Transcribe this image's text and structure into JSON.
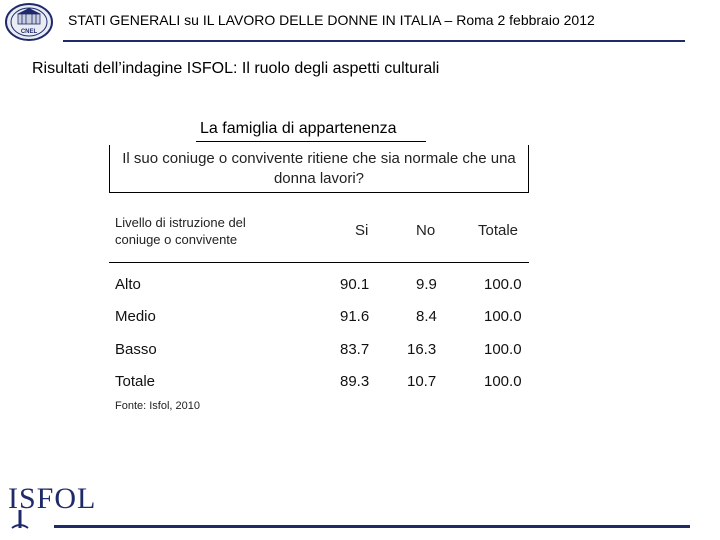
{
  "header": {
    "title": "STATI GENERALI su IL LAVORO DELLE DONNE IN ITALIA – Roma 2 febbraio 2012",
    "logo_label": "CNEL"
  },
  "subtitle": "Risultati dell’indagine ISFOL: Il ruolo degli aspetti culturali",
  "section_title": "La famiglia di appartenenza",
  "table": {
    "question": "Il suo coniuge o convivente ritiene che sia normale che una donna lavori?",
    "row_header": "Livello di istruzione del coniuge o convivente",
    "columns": [
      "Si",
      "No",
      "Totale"
    ],
    "rows": [
      {
        "label": "Alto",
        "si": "90.1",
        "no": "9.9",
        "totale": "100.0"
      },
      {
        "label": "Medio",
        "si": "91.6",
        "no": "8.4",
        "totale": "100.0"
      },
      {
        "label": "Basso",
        "si": "83.7",
        "no": "16.3",
        "totale": "100.0"
      },
      {
        "label": "Totale",
        "si": "89.3",
        "no": "10.7",
        "totale": "100.0"
      }
    ]
  },
  "source": "Fonte: Isfol, 2010",
  "footer": {
    "logo_text": "ISFOL",
    "brand_color": "#1f2a6b"
  }
}
